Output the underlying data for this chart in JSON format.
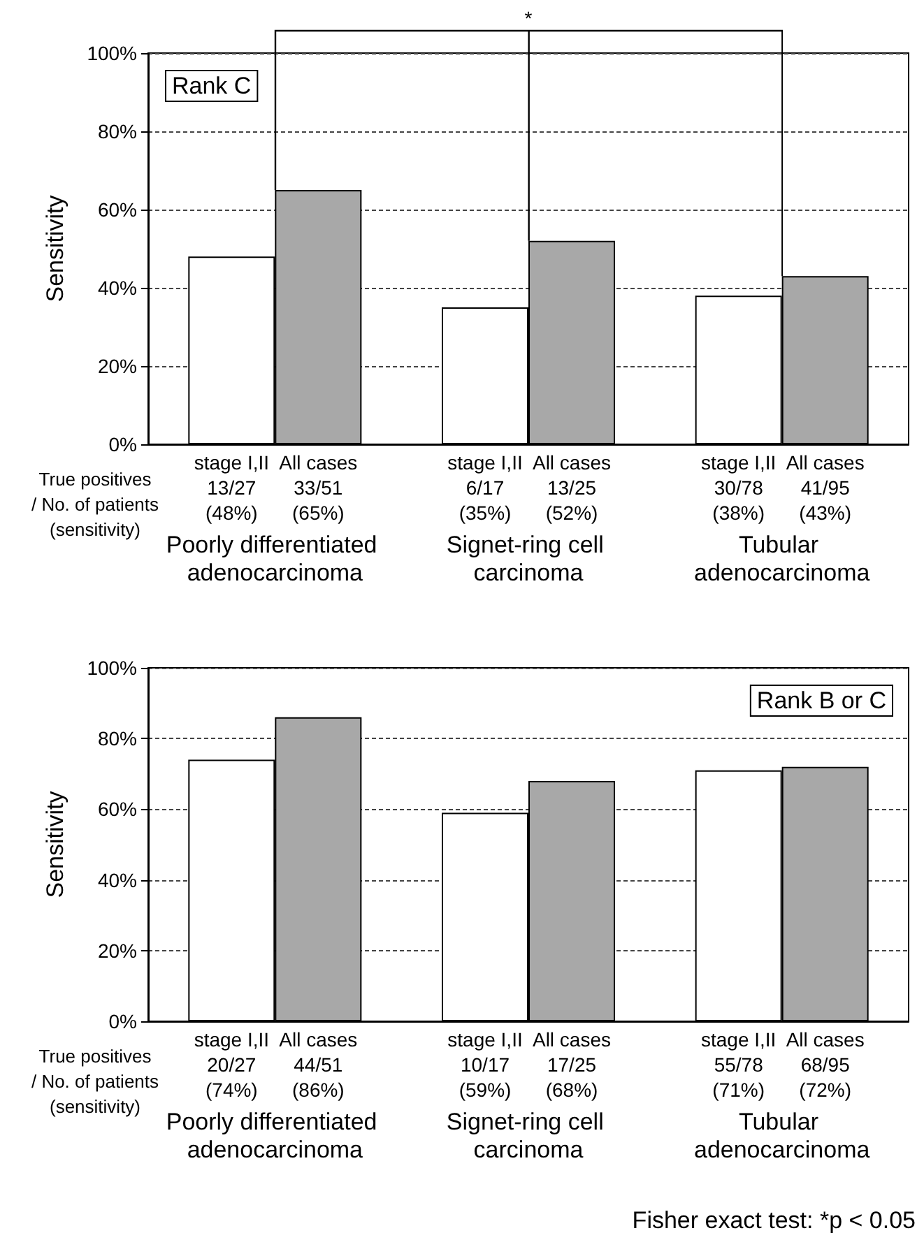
{
  "chart_data": [
    {
      "type": "bar",
      "ylabel": "Sensitivity",
      "categories": [
        "Poorly differentiated adenocarcinoma",
        "Signet-ring cell carcinoma",
        "Tubular adenocarcinoma"
      ],
      "series": [
        {
          "name": "stage I,II",
          "color": "#ffffff",
          "values": [
            48,
            35,
            38
          ],
          "value_labels": [
            "13/27\n(48%)",
            "6/17\n(35%)",
            "30/78\n(38%)"
          ]
        },
        {
          "name": "All cases",
          "color": "#a8a8a8",
          "values": [
            65,
            52,
            43
          ],
          "value_labels": [
            "33/51\n(65%)",
            "13/25\n(52%)",
            "41/95\n(43%)"
          ]
        }
      ],
      "ylim": [
        0,
        100
      ],
      "yticks": [
        {
          "value": 0,
          "label": "0%"
        },
        {
          "value": 20,
          "label": "20%"
        },
        {
          "value": 40,
          "label": "40%"
        },
        {
          "value": 60,
          "label": "60%"
        },
        {
          "value": 80,
          "label": "80%"
        },
        {
          "value": 100,
          "label": "100%"
        }
      ],
      "grid": "y",
      "legend": false,
      "annotations": [
        "Rank C",
        "*",
        "True positives\n/ No. of patients\n(sensitivity)"
      ]
    },
    {
      "type": "bar",
      "ylabel": "Sensitivity",
      "categories": [
        "Poorly differentiated adenocarcinoma",
        "Signet-ring cell carcinoma",
        "Tubular adenocarcinoma"
      ],
      "series": [
        {
          "name": "stage I,II",
          "color": "#ffffff",
          "values": [
            74,
            59,
            71
          ],
          "value_labels": [
            "20/27\n(74%)",
            "10/17\n(59%)",
            "55/78\n(71%)"
          ]
        },
        {
          "name": "All cases",
          "color": "#a8a8a8",
          "values": [
            86,
            68,
            72
          ],
          "value_labels": [
            "44/51\n(86%)",
            "17/25\n(68%)",
            "68/95\n(72%)"
          ]
        }
      ],
      "ylim": [
        0,
        100
      ],
      "yticks": [
        {
          "value": 0,
          "label": "0%"
        },
        {
          "value": 20,
          "label": "20%"
        },
        {
          "value": 40,
          "label": "40%"
        },
        {
          "value": 60,
          "label": "60%"
        },
        {
          "value": 80,
          "label": "80%"
        },
        {
          "value": 100,
          "label": "100%"
        }
      ],
      "grid": "y",
      "legend": false,
      "annotations": [
        "Rank B or C",
        "True positives\n/ No. of patients\n(sensitivity)",
        "Fisher exact test: *p < 0.05"
      ]
    }
  ]
}
